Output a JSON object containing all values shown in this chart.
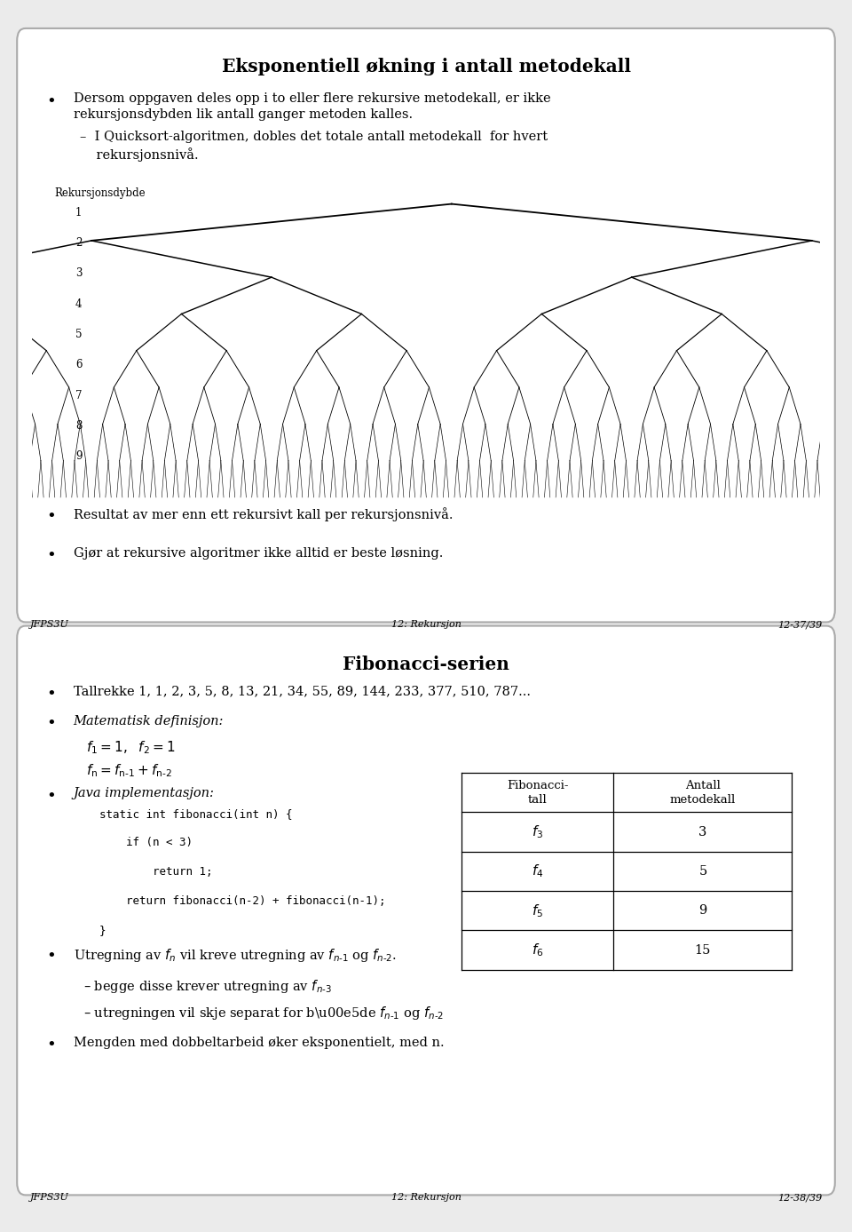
{
  "slide1_title": "Eksponentiell økning i antall metodekall",
  "rekursjon_label": "Rekursjonsdybde",
  "y_ticks": [
    "1",
    "2",
    "3",
    "4",
    "5",
    "6",
    "7",
    "8",
    "9"
  ],
  "footer1_left": "JFPS3U",
  "footer1_center": "12: Rekursjon",
  "footer1_right": "12-37/39",
  "slide2_title": "Fibonacci-serien",
  "footer2_left": "JFPS3U",
  "footer2_center": "12: Rekursjon",
  "footer2_right": "12-38/39",
  "bg_color": "#ebebeb",
  "slide_bg": "#ffffff",
  "border_color": "#aaaaaa"
}
